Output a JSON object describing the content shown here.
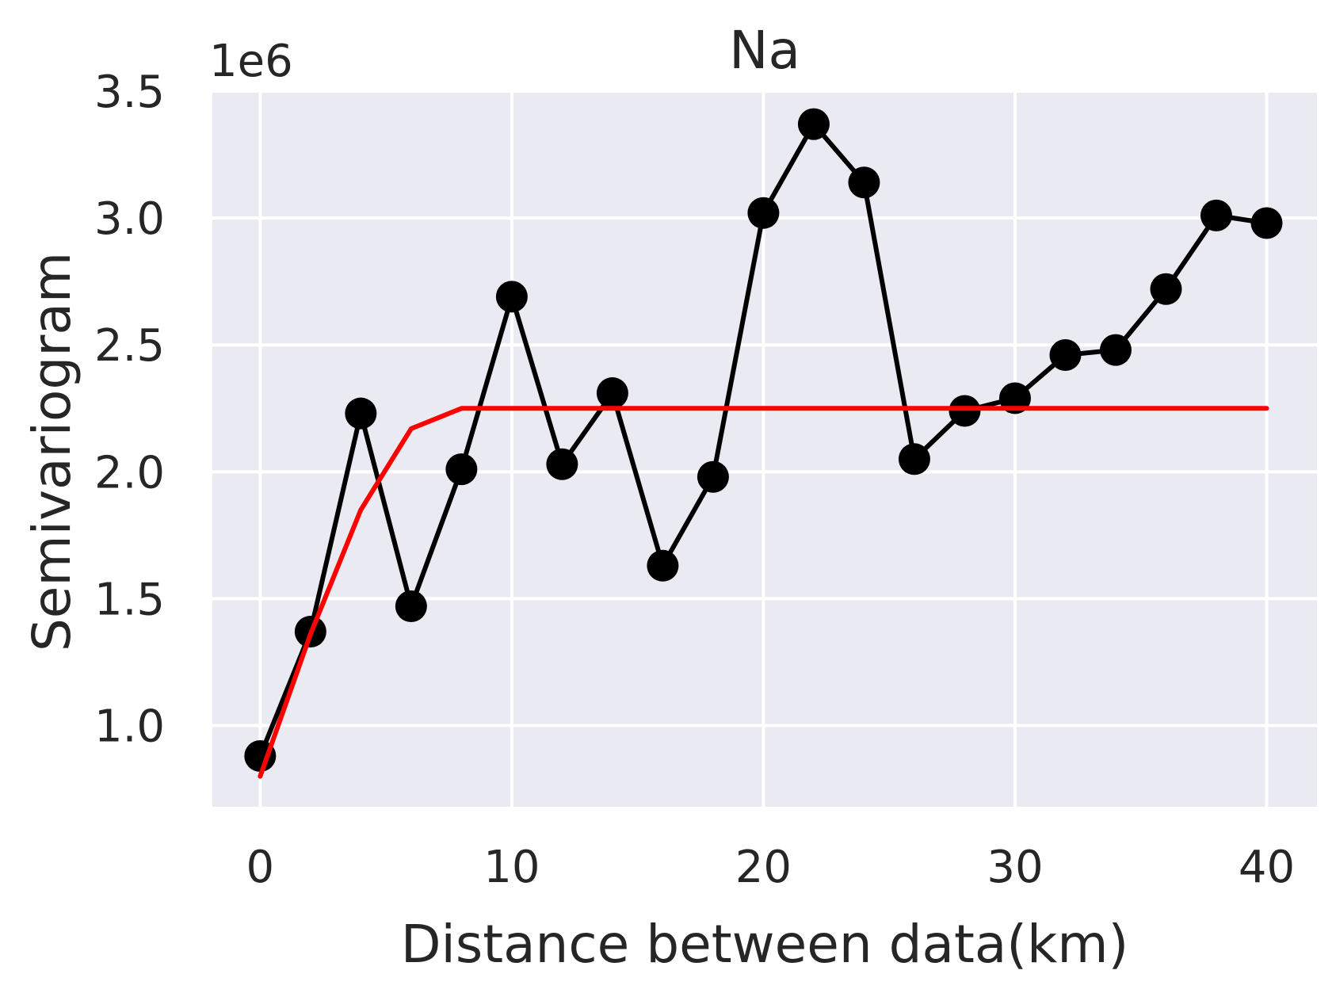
{
  "chart_data": {
    "type": "line",
    "title": "Na",
    "xlabel": "Distance between data(km)",
    "ylabel": "Semivariogram",
    "y_offset_label": "1e6",
    "xlim": [
      -1.9,
      42
    ],
    "ylim": [
      0.68,
      3.5
    ],
    "xticks": [
      0,
      10,
      20,
      30,
      40
    ],
    "xtick_labels": [
      "0",
      "10",
      "20",
      "30",
      "40"
    ],
    "yticks": [
      1.0,
      1.5,
      2.0,
      2.5,
      3.0,
      3.5
    ],
    "ytick_labels": [
      "1.0",
      "1.5",
      "2.0",
      "2.5",
      "3.0",
      "3.5"
    ],
    "grid": true,
    "legend": "none",
    "series": [
      {
        "color": "#000000",
        "marker": "circle",
        "x": [
          0,
          2,
          4,
          6,
          8,
          10,
          12,
          14,
          16,
          18,
          20,
          22,
          24,
          26,
          28,
          30,
          32,
          34,
          36,
          38,
          40
        ],
        "y": [
          0.88,
          1.37,
          2.23,
          1.47,
          2.01,
          2.69,
          2.03,
          2.31,
          1.63,
          1.98,
          3.02,
          3.37,
          3.14,
          2.05,
          2.24,
          2.29,
          2.46,
          2.48,
          2.72,
          3.01,
          2.98
        ]
      },
      {
        "color": "#ff0000",
        "marker": "none",
        "x": [
          0,
          2,
          4,
          6,
          8,
          10,
          12,
          14,
          16,
          18,
          20,
          22,
          24,
          26,
          28,
          30,
          32,
          34,
          36,
          38,
          40
        ],
        "y": [
          0.8,
          1.36,
          1.85,
          2.17,
          2.25,
          2.25,
          2.25,
          2.25,
          2.25,
          2.25,
          2.25,
          2.25,
          2.25,
          2.25,
          2.25,
          2.25,
          2.25,
          2.25,
          2.25,
          2.25,
          2.25
        ]
      }
    ],
    "colors": {
      "plot_background": "#eaeaf2",
      "grid": "#ffffff",
      "text": "#262626"
    }
  }
}
